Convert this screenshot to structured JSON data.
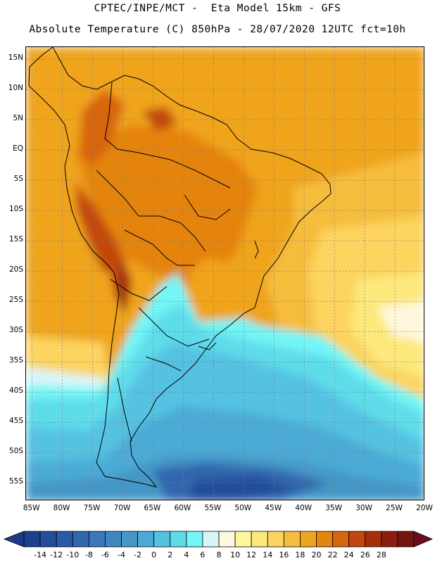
{
  "header": {
    "line1": "CPTEC/INPE/MCT -  Eta Model 15km - GFS",
    "line2": "Absolute Temperature (C) 850hPa - 28/07/2020 12UTC fct=10h"
  },
  "axes": {
    "lat_labels": [
      "15N",
      "10N",
      "5N",
      "EQ",
      "5S",
      "10S",
      "15S",
      "20S",
      "25S",
      "30S",
      "35S",
      "40S",
      "45S",
      "50S",
      "55S"
    ],
    "lat_values": [
      15,
      10,
      5,
      0,
      -5,
      -10,
      -15,
      -20,
      -25,
      -30,
      -35,
      -40,
      -45,
      -50,
      -55
    ],
    "lon_labels": [
      "85W",
      "80W",
      "75W",
      "70W",
      "65W",
      "60W",
      "55W",
      "50W",
      "45W",
      "40W",
      "35W",
      "30W",
      "25W",
      "20W"
    ],
    "lon_values": [
      -85,
      -80,
      -75,
      -70,
      -65,
      -60,
      -55,
      -50,
      -45,
      -40,
      -35,
      -30,
      -25,
      -20
    ],
    "lat_range": [
      -58,
      17
    ],
    "lon_range": [
      -86,
      -20
    ]
  },
  "colorbar": {
    "labels": [
      "-14",
      "-12",
      "-10",
      "-8",
      "-6",
      "-4",
      "-2",
      "0",
      "2",
      "4",
      "6",
      "8",
      "10",
      "12",
      "14",
      "16",
      "18",
      "20",
      "22",
      "24",
      "26",
      "28"
    ],
    "colors": [
      "#1d3f8e",
      "#244d9a",
      "#2b5aa6",
      "#3266ac",
      "#3a78b8",
      "#3f87c0",
      "#4597c8",
      "#4cabd6",
      "#54c2e2",
      "#5fdcea",
      "#72f6f6",
      "#d8f6fa",
      "#fff8de",
      "#fff59c",
      "#fde87c",
      "#fcd45f",
      "#f6bd3e",
      "#efa41e",
      "#e5840f",
      "#d86510",
      "#c2470e",
      "#a62e0c",
      "#8b1e0e",
      "#73160e"
    ],
    "under_color": "#1d3a86",
    "over_color": "#6a0e20"
  }
}
